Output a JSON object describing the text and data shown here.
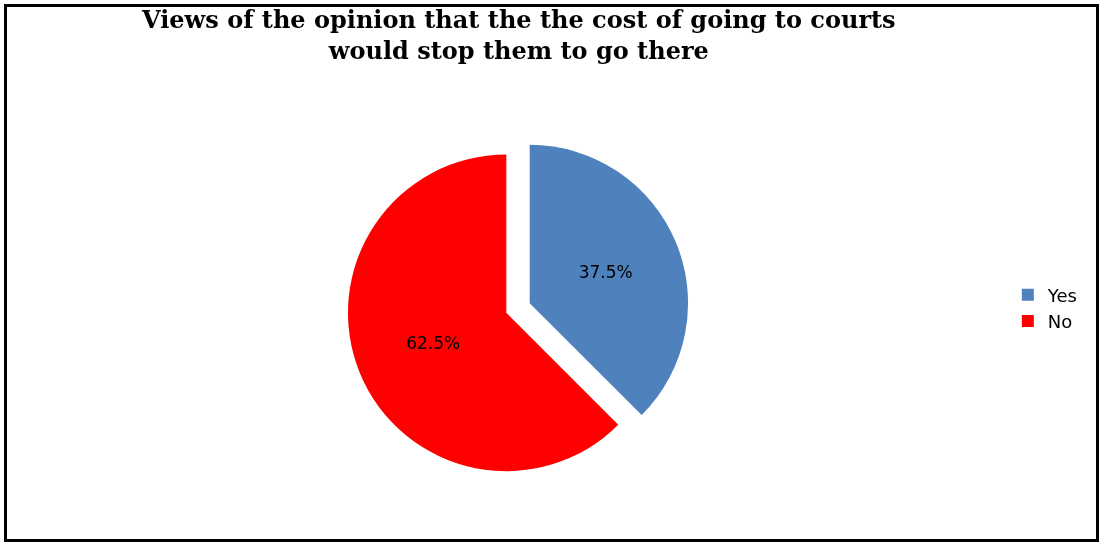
{
  "chart_data": {
    "type": "pie",
    "title": "Views of the opinion that the the cost of going to courts would stop them to go there",
    "categories": [
      "Yes",
      "No"
    ],
    "values": [
      37.5,
      62.5
    ],
    "colors": [
      "#4f81bd",
      "#ff0000"
    ],
    "value_labels": [
      "37.5%",
      "62.5%"
    ],
    "legend": "right"
  }
}
